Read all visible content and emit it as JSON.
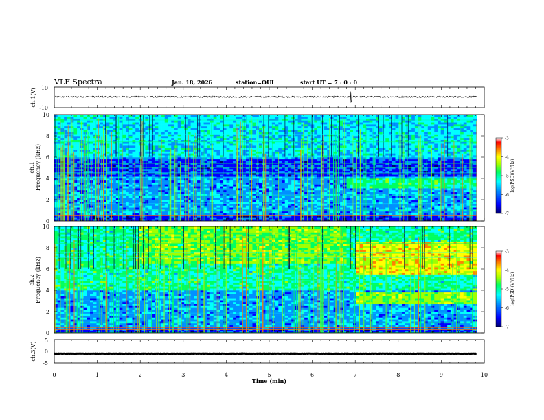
{
  "header": {
    "title": "VLF Spectra",
    "date": "Jan. 18, 2026",
    "station": "station=OUI",
    "start_ut": "start UT =  7 : 0  : 0"
  },
  "chart_data": [
    {
      "type": "line",
      "panel": "ch1-waveform",
      "ylabel": "ch.1(V)",
      "ylim": [
        -10,
        10
      ],
      "y_ticks": [
        "10",
        "-10"
      ],
      "x_range_min": [
        0,
        9.82
      ],
      "baseline_v": 0.5,
      "description_values": {
        "typical_amplitude_v": 1.5,
        "spike_time_min": 6.9,
        "spike_amplitude_v": 5
      }
    },
    {
      "type": "heatmap",
      "panel": "ch1-spectrogram",
      "ylabel_line1": "ch.1",
      "ylabel_line2": "Frequency (kHz)",
      "ylim": [
        0,
        10
      ],
      "y_ticks": [
        "0",
        "2",
        "4",
        "6",
        "8",
        "10"
      ],
      "x_range_min": [
        0,
        9.82
      ],
      "colorbar": {
        "label": "log(PSD)(V²/Hz)",
        "min": -7,
        "max": -3,
        "ticks": [
          "-3",
          "-4",
          "-5",
          "-6",
          "-7"
        ]
      },
      "features": {
        "quiet_band_khz": [
          4.2,
          5.8
        ],
        "emission_band_khz": [
          3,
          4
        ],
        "emission_onset_min": 6.8
      }
    },
    {
      "type": "heatmap",
      "panel": "ch2-spectrogram",
      "ylabel_line1": "ch.2",
      "ylabel_line2": "Frequency (kHz)",
      "ylim": [
        0,
        10
      ],
      "y_ticks": [
        "0",
        "2",
        "4",
        "6",
        "8",
        "10"
      ],
      "x_range_min": [
        0,
        9.82
      ],
      "colorbar": {
        "label": "log(PSD)(V²/Hz)",
        "min": -7,
        "max": -3,
        "ticks": [
          "-3",
          "-4",
          "-5",
          "-6",
          "-7"
        ]
      },
      "features": {
        "emission_band_khz": [
          5.5,
          8.5
        ],
        "strong_band_khz": [
          2.8,
          3.8
        ],
        "emission_onset_min": 7.0
      }
    },
    {
      "type": "line",
      "panel": "ch3-waveform",
      "ylabel": "ch.3(V)",
      "ylim": [
        -5,
        5
      ],
      "y_ticks": [
        "5",
        "0",
        "-5"
      ],
      "x_range_min": [
        0,
        9.82
      ],
      "baseline_v": -1
    }
  ],
  "x_axis": {
    "xlabel": "Time (min)",
    "xlim": [
      0,
      10
    ],
    "ticks": [
      "0",
      "1",
      "2",
      "3",
      "4",
      "5",
      "6",
      "7",
      "8",
      "9",
      "10"
    ]
  },
  "colors": {
    "frame": "#000000",
    "spectro_bg": "#0a1a8c",
    "colormap": [
      "#000070",
      "#0000ff",
      "#0090ff",
      "#00ffff",
      "#00ff60",
      "#a0ff00",
      "#ffff00",
      "#ff8000",
      "#ff0000",
      "#ffffff"
    ]
  }
}
